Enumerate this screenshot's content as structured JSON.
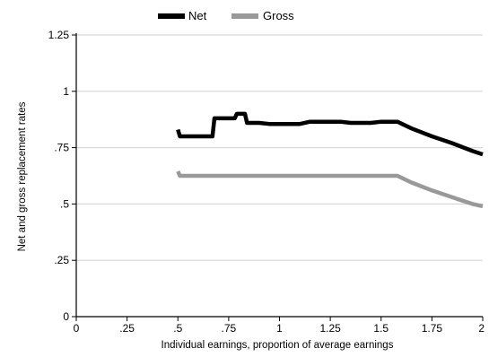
{
  "chart_data": {
    "type": "line",
    "xlabel": "Individual earnings, proportion of average earnings",
    "ylabel": "Net and gross replacement rates",
    "xlim": [
      0,
      2
    ],
    "ylim": [
      0,
      1.25
    ],
    "x_ticks": [
      0,
      0.25,
      0.5,
      0.75,
      1,
      1.25,
      1.5,
      1.75,
      2
    ],
    "x_tick_labels": [
      "0",
      ".25",
      ".5",
      ".75",
      "1",
      "1.25",
      "1.5",
      "1.75",
      "2"
    ],
    "y_ticks": [
      0,
      0.25,
      0.5,
      0.75,
      1,
      1.25
    ],
    "y_tick_labels": [
      "0",
      ".25",
      ".5",
      ".75",
      "1",
      "1.25"
    ],
    "grid": true,
    "legend_position": "top",
    "series": [
      {
        "name": "Net",
        "color": "#000000",
        "points": [
          [
            0.5,
            0.83
          ],
          [
            0.51,
            0.8
          ],
          [
            0.67,
            0.8
          ],
          [
            0.68,
            0.88
          ],
          [
            0.78,
            0.88
          ],
          [
            0.79,
            0.9
          ],
          [
            0.83,
            0.9
          ],
          [
            0.84,
            0.86
          ],
          [
            0.9,
            0.86
          ],
          [
            0.95,
            0.855
          ],
          [
            1.1,
            0.855
          ],
          [
            1.15,
            0.865
          ],
          [
            1.3,
            0.865
          ],
          [
            1.35,
            0.86
          ],
          [
            1.45,
            0.86
          ],
          [
            1.5,
            0.865
          ],
          [
            1.58,
            0.865
          ],
          [
            1.65,
            0.835
          ],
          [
            1.75,
            0.8
          ],
          [
            1.85,
            0.77
          ],
          [
            1.95,
            0.735
          ],
          [
            2.0,
            0.72
          ]
        ]
      },
      {
        "name": "Gross",
        "color": "#999999",
        "points": [
          [
            0.5,
            0.645
          ],
          [
            0.51,
            0.625
          ],
          [
            1.58,
            0.625
          ],
          [
            1.65,
            0.595
          ],
          [
            1.75,
            0.56
          ],
          [
            1.85,
            0.53
          ],
          [
            1.95,
            0.5
          ],
          [
            2.0,
            0.49
          ]
        ]
      }
    ]
  }
}
